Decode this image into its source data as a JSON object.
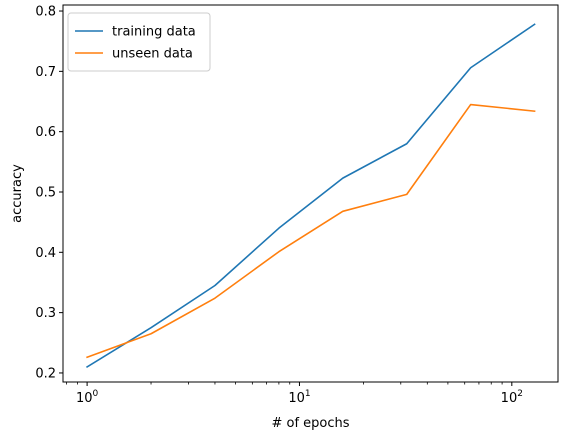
{
  "chart_data": {
    "type": "line",
    "xlabel": "# of epochs",
    "ylabel": "accuracy",
    "xscale": "log",
    "xlim": [
      0.77,
      165
    ],
    "ylim": [
      0.185,
      0.81
    ],
    "x_ticks": [
      {
        "value": 1,
        "base": "10",
        "exp": "0"
      },
      {
        "value": 10,
        "base": "10",
        "exp": "1"
      },
      {
        "value": 100,
        "base": "10",
        "exp": "2"
      }
    ],
    "y_ticks": [
      {
        "value": 0.2,
        "label": "0.2"
      },
      {
        "value": 0.3,
        "label": "0.3"
      },
      {
        "value": 0.4,
        "label": "0.4"
      },
      {
        "value": 0.5,
        "label": "0.5"
      },
      {
        "value": 0.6,
        "label": "0.6"
      },
      {
        "value": 0.7,
        "label": "0.7"
      },
      {
        "value": 0.8,
        "label": "0.8"
      }
    ],
    "x": [
      1,
      2,
      4,
      8,
      16,
      32,
      64,
      128
    ],
    "series": [
      {
        "name": "training data",
        "color": "#1f77b4",
        "values": [
          0.21,
          0.275,
          0.345,
          0.44,
          0.523,
          0.58,
          0.706,
          0.778
        ]
      },
      {
        "name": "unseen data",
        "color": "#ff7f0e",
        "values": [
          0.226,
          0.265,
          0.324,
          0.401,
          0.468,
          0.496,
          0.645,
          0.634
        ]
      }
    ],
    "legend_position": "upper-left",
    "grid": false
  }
}
